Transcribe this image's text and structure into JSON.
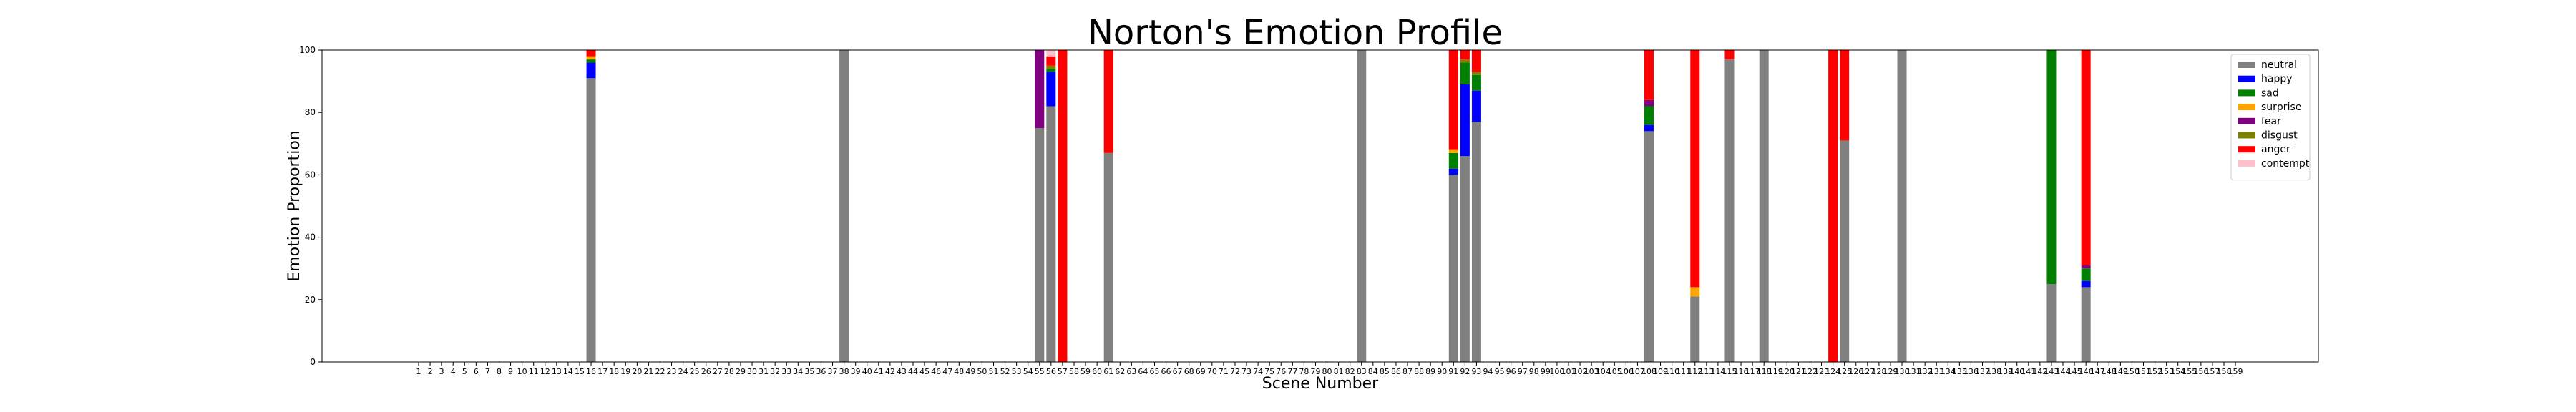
{
  "chart_data": {
    "type": "bar",
    "stacked": true,
    "title": "Norton's Emotion Profile",
    "xlabel": "Scene Number",
    "ylabel": "Emotion Proportion",
    "ylim": [
      0,
      100
    ],
    "yticks": [
      0,
      20,
      40,
      60,
      80,
      100
    ],
    "categories_range": [
      1,
      159
    ],
    "grid": false,
    "legend_placement": "top-right",
    "series": [
      {
        "name": "neutral",
        "color": "#808080"
      },
      {
        "name": "happy",
        "color": "#0000ff"
      },
      {
        "name": "sad",
        "color": "#008000"
      },
      {
        "name": "surprise",
        "color": "#ffa500"
      },
      {
        "name": "fear",
        "color": "#800080"
      },
      {
        "name": "disgust",
        "color": "#808000"
      },
      {
        "name": "anger",
        "color": "#ff0000"
      },
      {
        "name": "contempt",
        "color": "#ffc0cb"
      }
    ],
    "data": [
      {
        "scene": 16,
        "neutral": 91,
        "happy": 5,
        "sad": 1,
        "surprise": 1,
        "fear": 0,
        "disgust": 0,
        "anger": 2,
        "contempt": 0
      },
      {
        "scene": 38,
        "neutral": 100,
        "happy": 0,
        "sad": 0,
        "surprise": 0,
        "fear": 0,
        "disgust": 0,
        "anger": 0,
        "contempt": 0
      },
      {
        "scene": 55,
        "neutral": 75,
        "happy": 0,
        "sad": 0,
        "surprise": 0,
        "fear": 25,
        "disgust": 0,
        "anger": 0,
        "contempt": 0
      },
      {
        "scene": 56,
        "neutral": 82,
        "happy": 11,
        "sad": 1,
        "surprise": 0,
        "fear": 0,
        "disgust": 1,
        "anger": 3,
        "contempt": 2
      },
      {
        "scene": 57,
        "neutral": 0,
        "happy": 0,
        "sad": 0,
        "surprise": 0,
        "fear": 0,
        "disgust": 0,
        "anger": 100,
        "contempt": 0
      },
      {
        "scene": 61,
        "neutral": 67,
        "happy": 0,
        "sad": 0,
        "surprise": 0,
        "fear": 0,
        "disgust": 0,
        "anger": 33,
        "contempt": 0
      },
      {
        "scene": 83,
        "neutral": 100,
        "happy": 0,
        "sad": 0,
        "surprise": 0,
        "fear": 0,
        "disgust": 0,
        "anger": 0,
        "contempt": 0
      },
      {
        "scene": 91,
        "neutral": 60,
        "happy": 2,
        "sad": 5,
        "surprise": 1,
        "fear": 0,
        "disgust": 0,
        "anger": 32,
        "contempt": 0
      },
      {
        "scene": 92,
        "neutral": 66,
        "happy": 23,
        "sad": 7,
        "surprise": 0,
        "fear": 0,
        "disgust": 1,
        "anger": 3,
        "contempt": 0
      },
      {
        "scene": 93,
        "neutral": 77,
        "happy": 10,
        "sad": 5,
        "surprise": 0,
        "fear": 0,
        "disgust": 1,
        "anger": 7,
        "contempt": 0
      },
      {
        "scene": 108,
        "neutral": 74,
        "happy": 2,
        "sad": 6,
        "surprise": 0,
        "fear": 2,
        "disgust": 0,
        "anger": 16,
        "contempt": 0
      },
      {
        "scene": 112,
        "neutral": 21,
        "happy": 0,
        "sad": 0,
        "surprise": 3,
        "fear": 0,
        "disgust": 0,
        "anger": 76,
        "contempt": 0
      },
      {
        "scene": 115,
        "neutral": 97,
        "happy": 0,
        "sad": 0,
        "surprise": 0,
        "fear": 0,
        "disgust": 0,
        "anger": 3,
        "contempt": 0
      },
      {
        "scene": 118,
        "neutral": 100,
        "happy": 0,
        "sad": 0,
        "surprise": 0,
        "fear": 0,
        "disgust": 0,
        "anger": 0,
        "contempt": 0
      },
      {
        "scene": 124,
        "neutral": 0,
        "happy": 0,
        "sad": 0,
        "surprise": 0,
        "fear": 0,
        "disgust": 0,
        "anger": 100,
        "contempt": 0
      },
      {
        "scene": 125,
        "neutral": 71,
        "happy": 0,
        "sad": 0,
        "surprise": 0,
        "fear": 0,
        "disgust": 0,
        "anger": 29,
        "contempt": 0
      },
      {
        "scene": 130,
        "neutral": 100,
        "happy": 0,
        "sad": 0,
        "surprise": 0,
        "fear": 0,
        "disgust": 0,
        "anger": 0,
        "contempt": 0
      },
      {
        "scene": 143,
        "neutral": 25,
        "happy": 0,
        "sad": 75,
        "surprise": 0,
        "fear": 0,
        "disgust": 0,
        "anger": 0,
        "contempt": 0
      },
      {
        "scene": 146,
        "neutral": 24,
        "happy": 2,
        "sad": 4,
        "surprise": 0,
        "fear": 1,
        "disgust": 0,
        "anger": 69,
        "contempt": 0
      }
    ]
  }
}
